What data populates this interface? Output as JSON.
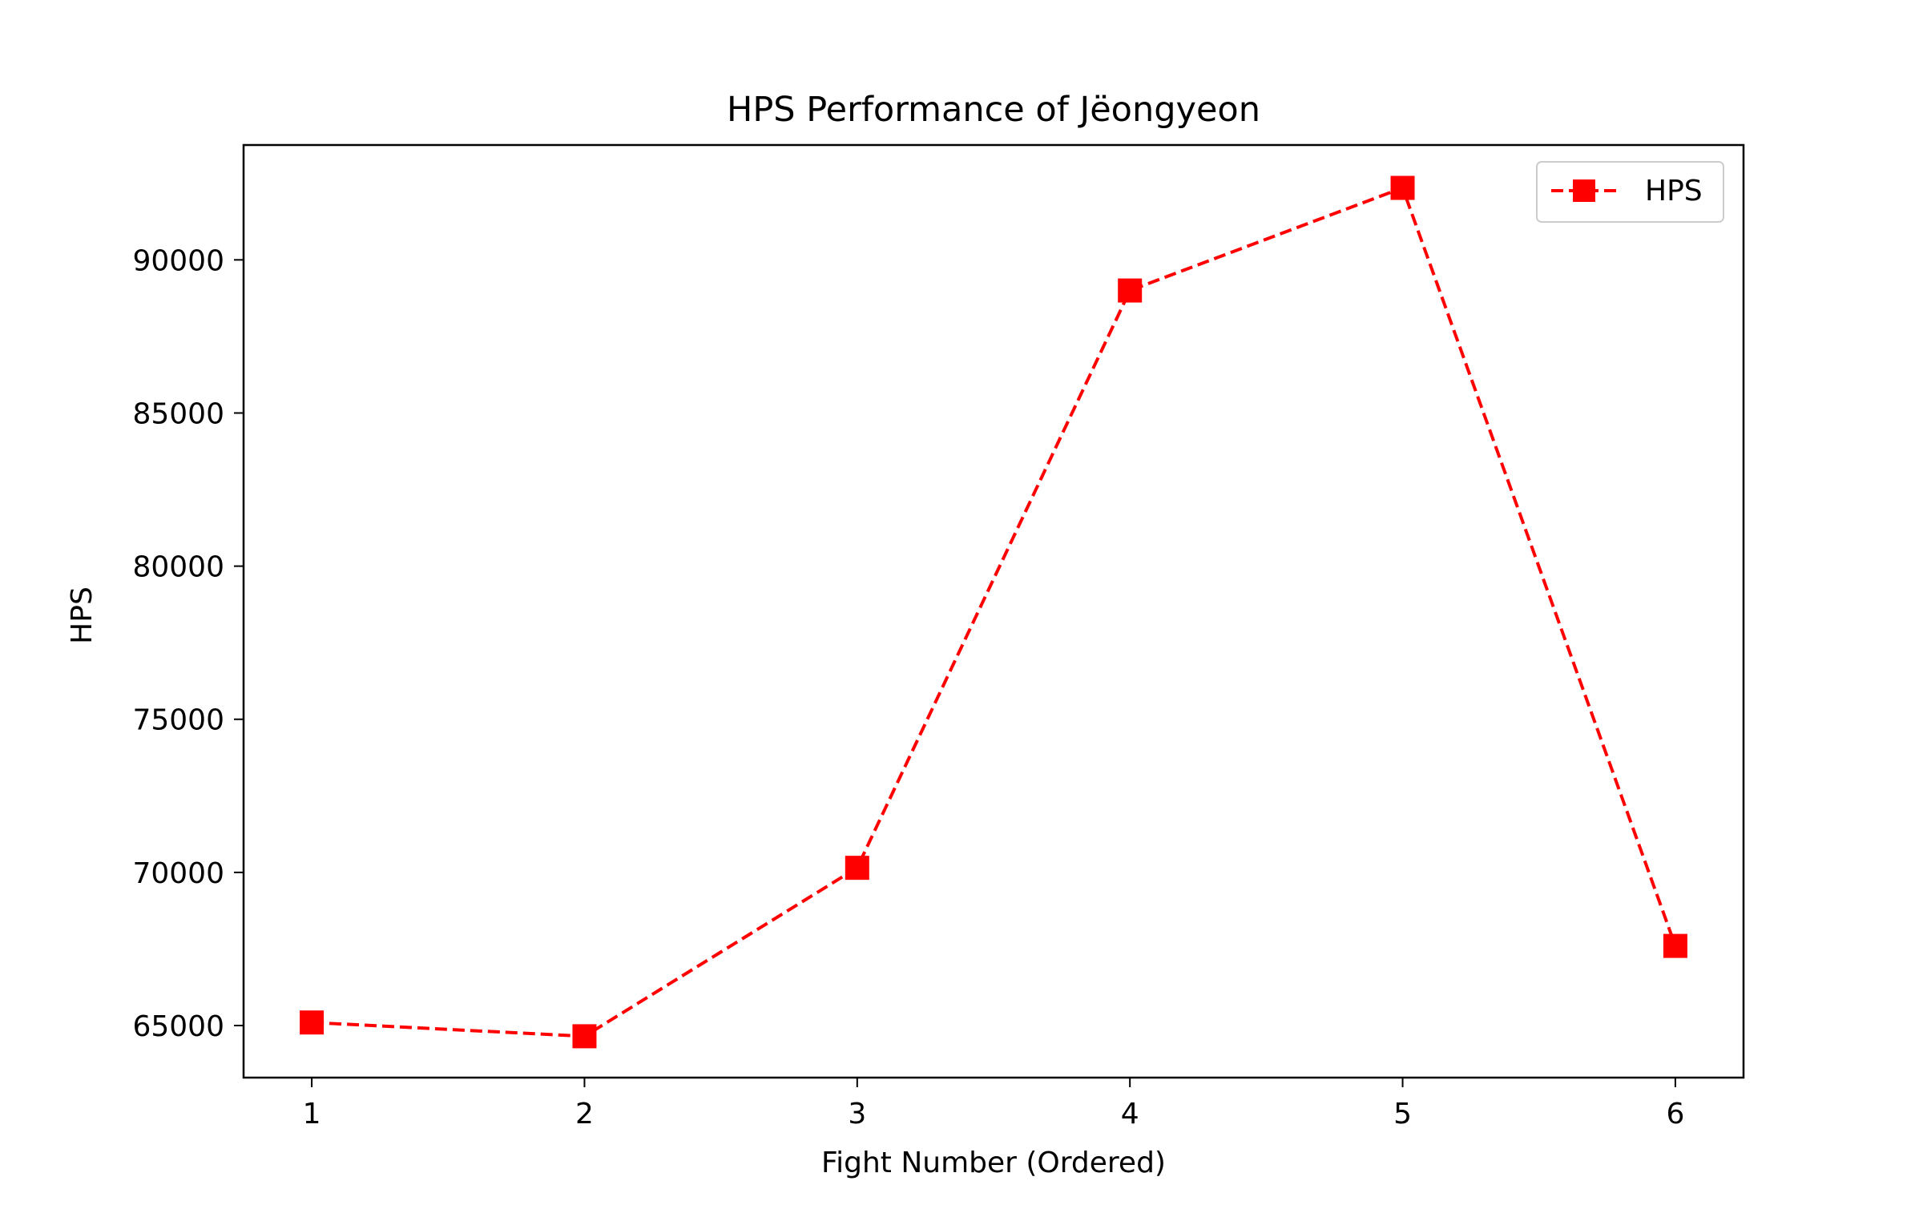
{
  "chart_data": {
    "type": "line",
    "title": "HPS Performance of Jëongyeon",
    "xlabel": "Fight Number (Ordered)",
    "ylabel": "HPS",
    "x": [
      1,
      2,
      3,
      4,
      5,
      6
    ],
    "series": [
      {
        "name": "HPS",
        "values": [
          65100,
          64650,
          70150,
          89000,
          92350,
          67600
        ],
        "color": "#ff0000",
        "line_style": "dashed",
        "marker": "square"
      }
    ],
    "xlim": [
      0.75,
      6.25
    ],
    "ylim": [
      63300,
      93750
    ],
    "xticks": [
      "1",
      "2",
      "3",
      "4",
      "5",
      "6"
    ],
    "yticks": [
      "65000",
      "70000",
      "75000",
      "80000",
      "85000",
      "90000"
    ],
    "grid": false,
    "legend_position": "top-right"
  }
}
